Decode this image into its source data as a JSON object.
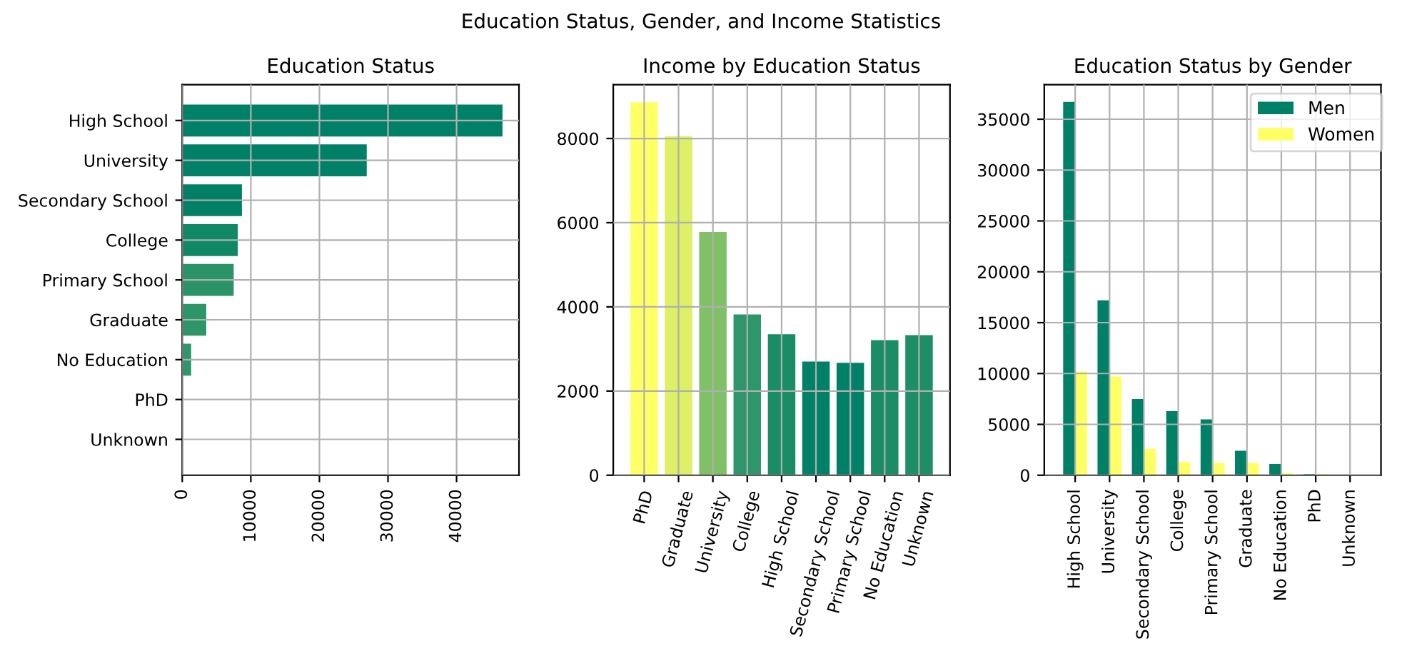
{
  "chart_data": [
    {
      "type": "bar",
      "title": "Education Status",
      "annotations": [
        "Education Status, Gender, and Income Statistics"
      ],
      "orientation": "horizontal",
      "categories": [
        "High School",
        "University",
        "Secondary School",
        "College",
        "Primary School",
        "Graduate",
        "No Education",
        "PhD",
        "Unknown"
      ],
      "values": [
        46700,
        26900,
        8700,
        8100,
        7500,
        3500,
        1300,
        0,
        0
      ],
      "colors": [
        "#008066",
        "#008066",
        "#037f66",
        "#108866",
        "#2a9468",
        "#2d9668",
        "#2e966a",
        "#2e966a",
        "#2e966a"
      ],
      "xlim": [
        0,
        49100
      ],
      "xticks": [
        0,
        10000,
        20000,
        30000,
        40000
      ],
      "grid": true
    },
    {
      "type": "bar",
      "title": "Income by Education Status",
      "categories": [
        "PhD",
        "Graduate",
        "University",
        "College",
        "High School",
        "Secondary School",
        "Primary School",
        "No Education",
        "Unknown"
      ],
      "values": [
        8860,
        8050,
        5780,
        3820,
        3350,
        2700,
        2670,
        3210,
        3330
      ],
      "colors": [
        "#ffff66",
        "#dfef66",
        "#80c066",
        "#2e966a",
        "#1b8d66",
        "#008066",
        "#008066",
        "#1b8d66",
        "#1d8e66"
      ],
      "ylim": [
        0,
        9280
      ],
      "yticks": [
        0,
        2000,
        4000,
        6000,
        8000
      ],
      "grid": true
    },
    {
      "type": "bar",
      "title": "Education Status by Gender",
      "legend": "top right",
      "categories": [
        "High School",
        "University",
        "Secondary School",
        "College",
        "Primary School",
        "Graduate",
        "No Education",
        "PhD",
        "Unknown"
      ],
      "series": [
        {
          "name": "Men",
          "color": "#008066",
          "values": [
            36700,
            17200,
            7500,
            6300,
            5500,
            2400,
            1100,
            100,
            0
          ]
        },
        {
          "name": "Women",
          "color": "#ffff66",
          "values": [
            10200,
            9700,
            2600,
            1300,
            1200,
            1200,
            200,
            100,
            0
          ]
        }
      ],
      "ylim": [
        0,
        38400
      ],
      "yticks": [
        0,
        5000,
        10000,
        15000,
        20000,
        25000,
        30000,
        35000
      ],
      "grid": true
    }
  ]
}
